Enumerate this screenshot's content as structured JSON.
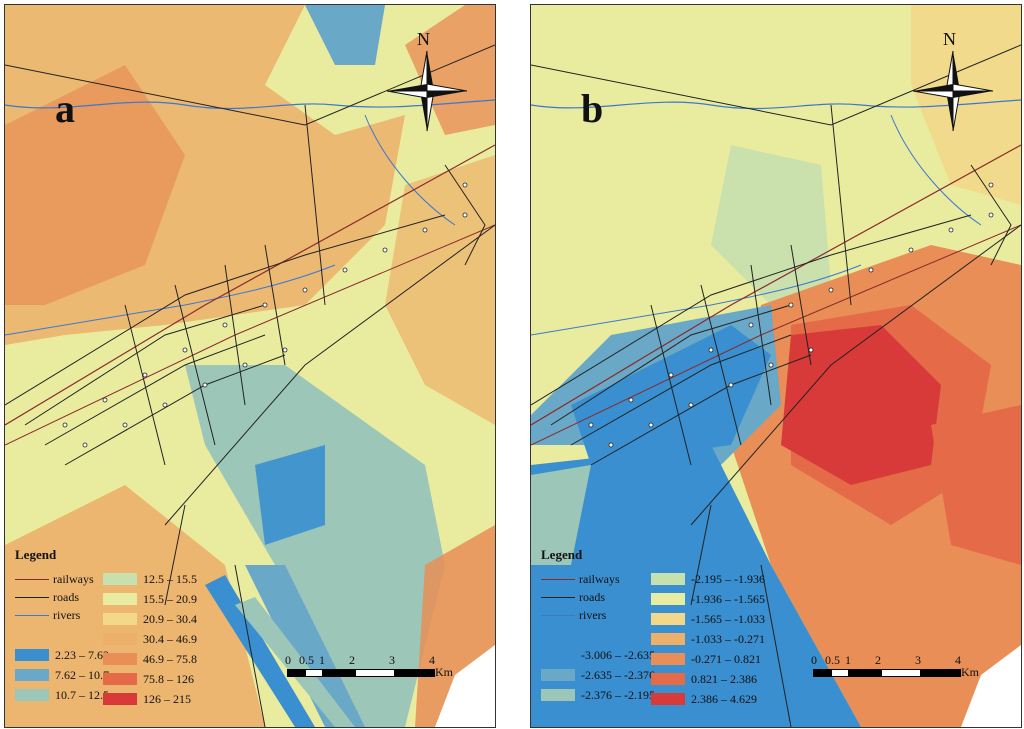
{
  "panels": [
    {
      "letter": "a",
      "north": "N",
      "legend": {
        "title": "Legend",
        "lines": [
          {
            "label": "railways",
            "color": "#8b2a2a"
          },
          {
            "label": "roads",
            "color": "#222222"
          },
          {
            "label": "rivers",
            "color": "#3a78d0"
          }
        ],
        "classes": [
          {
            "label": "2.23 – 7.62",
            "color": "#3a8fd0"
          },
          {
            "label": "7.62 – 10.7",
            "color": "#6aa8c8"
          },
          {
            "label": "10.7 – 12.5",
            "color": "#9cc6b8"
          },
          {
            "label": "12.5 – 15.5",
            "color": "#c6e0ae"
          },
          {
            "label": "15.5 – 20.9",
            "color": "#e8eca0"
          },
          {
            "label": "20.9 – 30.4",
            "color": "#f2d888"
          },
          {
            "label": "30.4 – 46.9",
            "color": "#ecb06a"
          },
          {
            "label": "46.9 – 75.8",
            "color": "#e88e56"
          },
          {
            "label": "75.8 – 126",
            "color": "#e46a48"
          },
          {
            "label": "126 – 215",
            "color": "#d83a3a"
          }
        ]
      },
      "scale": {
        "ticks": [
          "0",
          "0.5",
          "1",
          "2",
          "3",
          "4"
        ],
        "unit": "Km"
      }
    },
    {
      "letter": "b",
      "north": "N",
      "legend": {
        "title": "Legend",
        "lines": [
          {
            "label": "railways",
            "color": "#8b2a2a"
          },
          {
            "label": "roads",
            "color": "#222222"
          },
          {
            "label": "rivers",
            "color": "#3a78d0"
          }
        ],
        "classes": [
          {
            "label": "-3.006 – -2.635",
            "color": "#3a8fd0"
          },
          {
            "label": "-2.635 – -2.376",
            "color": "#6aa8c8"
          },
          {
            "label": "-2.376 – -2.195",
            "color": "#9cc6b8"
          },
          {
            "label": "-2.195 – -1.936",
            "color": "#c6e0ae"
          },
          {
            "label": "-1.936 – -1.565",
            "color": "#e8eca0"
          },
          {
            "label": "-1.565 – -1.033",
            "color": "#f2d888"
          },
          {
            "label": "-1.033 – -0.271",
            "color": "#ecb06a"
          },
          {
            "label": "-0.271 – 0.821",
            "color": "#e88e56"
          },
          {
            "label": "0.821 – 2.386",
            "color": "#e46a48"
          },
          {
            "label": "2.386 – 4.629",
            "color": "#d83a3a"
          }
        ]
      },
      "scale": {
        "ticks": [
          "0",
          "0.5",
          "1",
          "2",
          "3",
          "4"
        ],
        "unit": "Km"
      }
    }
  ]
}
